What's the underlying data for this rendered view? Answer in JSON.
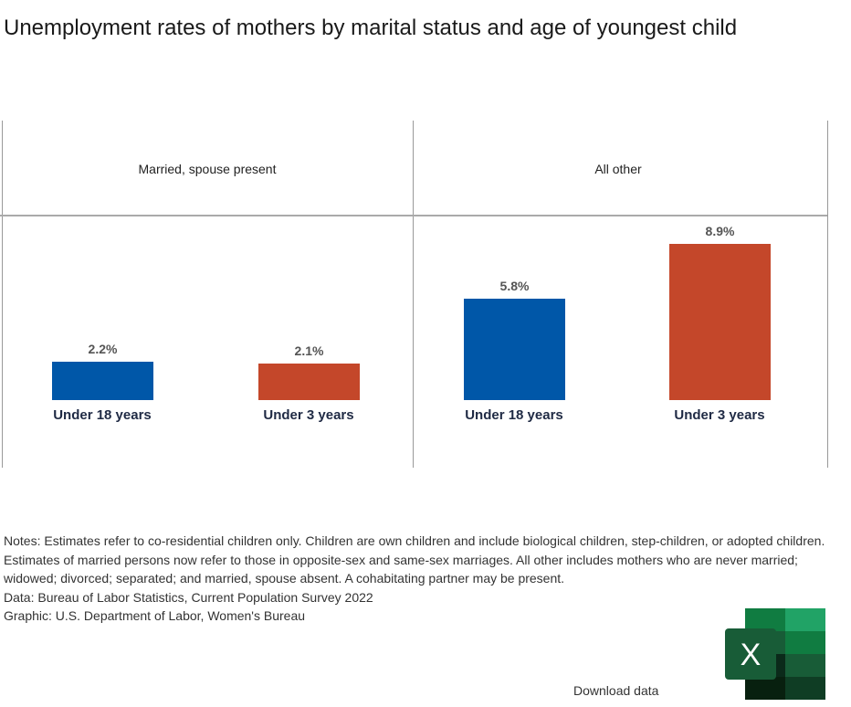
{
  "chart_data": {
    "type": "bar",
    "title": "Unemployment rates of mothers by marital status and age of youngest child",
    "panels": [
      {
        "name": "Married, spouse present",
        "categories": [
          "Under 18 years",
          "Under 3 years"
        ],
        "values": [
          2.2,
          2.1
        ],
        "labels": [
          "2.2%",
          "2.1%"
        ]
      },
      {
        "name": "All other",
        "categories": [
          "Under 18 years",
          "Under 3 years"
        ],
        "values": [
          5.8,
          8.9
        ],
        "labels": [
          "5.8%",
          "8.9%"
        ]
      }
    ],
    "colors": {
      "Under 18 years": "#0057a8",
      "Under 3 years": "#c4472a"
    },
    "ylim": [
      0,
      8.9
    ],
    "grid": false
  },
  "notes": [
    "Notes: Estimates refer to co-residential children only. Children are own children and include biological children, step-children, or adopted children. Estimates of married persons now refer to those in opposite-sex and same-sex marriages. All other includes mothers who are never married; widowed; divorced; separated; and married, spouse absent. A cohabitating partner may be present.",
    "Data: Bureau of Labor Statistics, Current Population Survey 2022",
    "Graphic: U.S. Department of Labor, Women's Bureau"
  ],
  "download_label": "Download data",
  "excel_icon": "excel-icon"
}
